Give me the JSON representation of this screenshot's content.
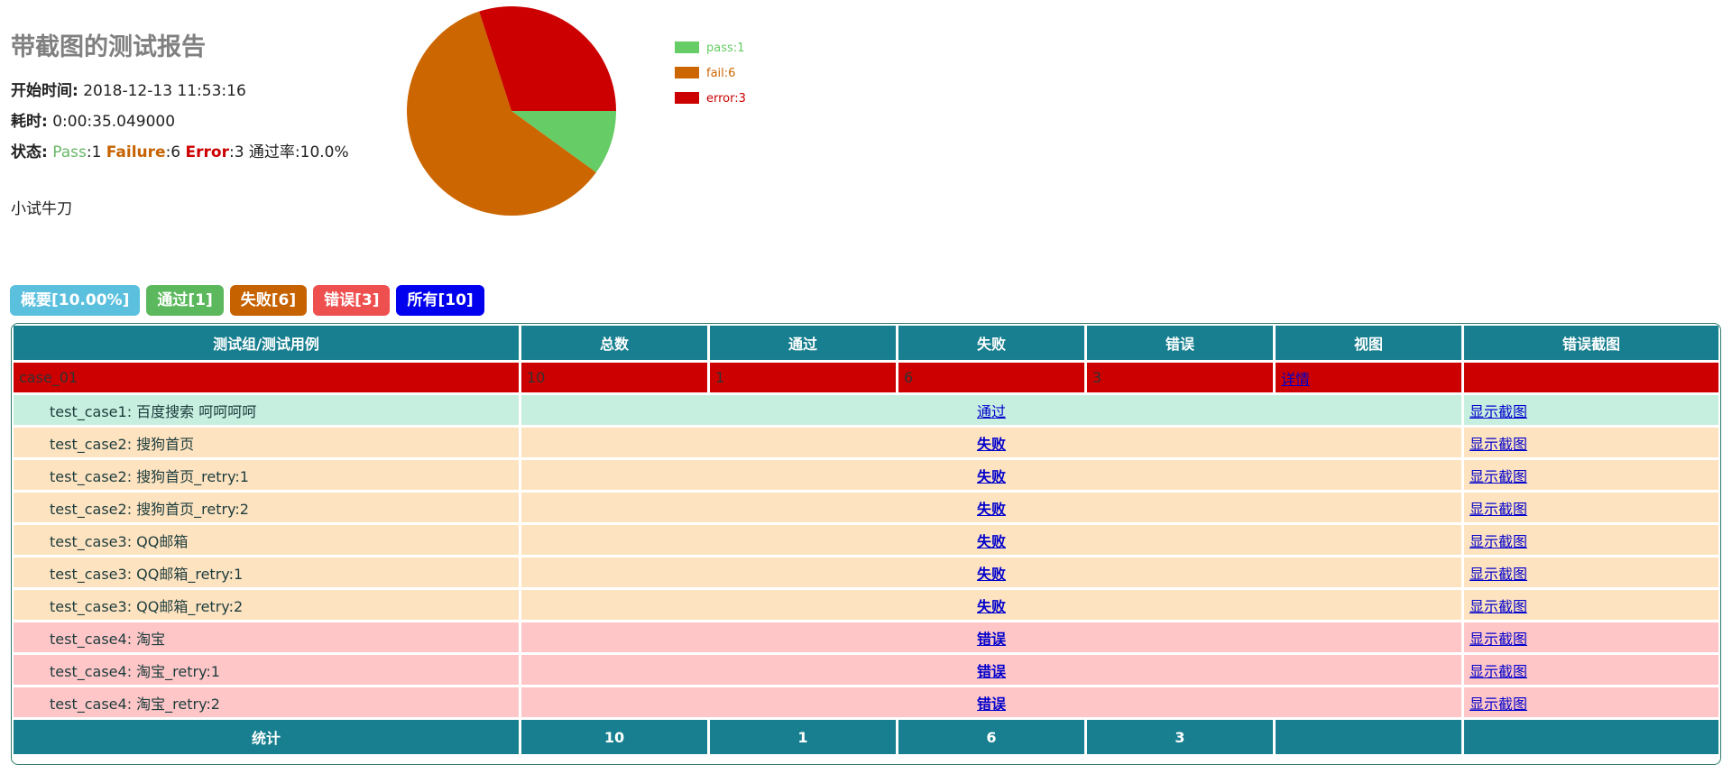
{
  "header": {
    "title": "带截图的测试报告",
    "start_label": "开始时间:",
    "start_value": "2018-12-13 11:53:16",
    "duration_label": "耗时:",
    "duration_value": "0:00:35.049000",
    "status_label": "状态:",
    "pass_label": "Pass",
    "pass_value": ":1",
    "fail_label": "Failure",
    "fail_value": ":6",
    "error_label": "Error",
    "error_value": ":3",
    "rate_text": "通过率:10.0%",
    "description": "小试牛刀"
  },
  "chart_data": {
    "type": "pie",
    "title": "",
    "legend_position": "right",
    "slices": [
      {
        "label": "pass:1",
        "value": 1,
        "color": "#66cc66"
      },
      {
        "label": "fail:6",
        "value": 6,
        "color": "#cc6600"
      },
      {
        "label": "error:3",
        "value": 3,
        "color": "#cc0000"
      }
    ]
  },
  "filters": [
    {
      "label": "概要[10.00%]",
      "color": "#5bc0de"
    },
    {
      "label": "通过[1]",
      "color": "#5cb85c"
    },
    {
      "label": "失败[6]",
      "color": "#c66200"
    },
    {
      "label": "错误[3]",
      "color": "#ee5050"
    },
    {
      "label": "所有[10]",
      "color": "#0000ee"
    }
  ],
  "table": {
    "headers": [
      "测试组/测试用例",
      "总数",
      "通过",
      "失败",
      "错误",
      "视图",
      "错误截图"
    ],
    "group": {
      "name": "case_01",
      "total": "10",
      "pass": "1",
      "fail": "6",
      "error": "3",
      "view": "详情"
    },
    "rows": [
      {
        "name": "test_case1: 百度搜索 呵呵呵呵",
        "status": "通过",
        "type": "pass",
        "shot": "显示截图"
      },
      {
        "name": "test_case2: 搜狗首页",
        "status": "失败",
        "type": "fail",
        "shot": "显示截图"
      },
      {
        "name": "test_case2: 搜狗首页_retry:1",
        "status": "失败",
        "type": "fail",
        "shot": "显示截图"
      },
      {
        "name": "test_case2: 搜狗首页_retry:2",
        "status": "失败",
        "type": "fail",
        "shot": "显示截图"
      },
      {
        "name": "test_case3: QQ邮箱",
        "status": "失败",
        "type": "fail",
        "shot": "显示截图"
      },
      {
        "name": "test_case3: QQ邮箱_retry:1",
        "status": "失败",
        "type": "fail",
        "shot": "显示截图"
      },
      {
        "name": "test_case3: QQ邮箱_retry:2",
        "status": "失败",
        "type": "fail",
        "shot": "显示截图"
      },
      {
        "name": "test_case4: 淘宝",
        "status": "错误",
        "type": "err",
        "shot": "显示截图"
      },
      {
        "name": "test_case4: 淘宝_retry:1",
        "status": "错误",
        "type": "err",
        "shot": "显示截图"
      },
      {
        "name": "test_case4: 淘宝_retry:2",
        "status": "错误",
        "type": "err",
        "shot": "显示截图"
      }
    ],
    "footer": {
      "label": "统计",
      "total": "10",
      "pass": "1",
      "fail": "6",
      "error": "3"
    }
  }
}
